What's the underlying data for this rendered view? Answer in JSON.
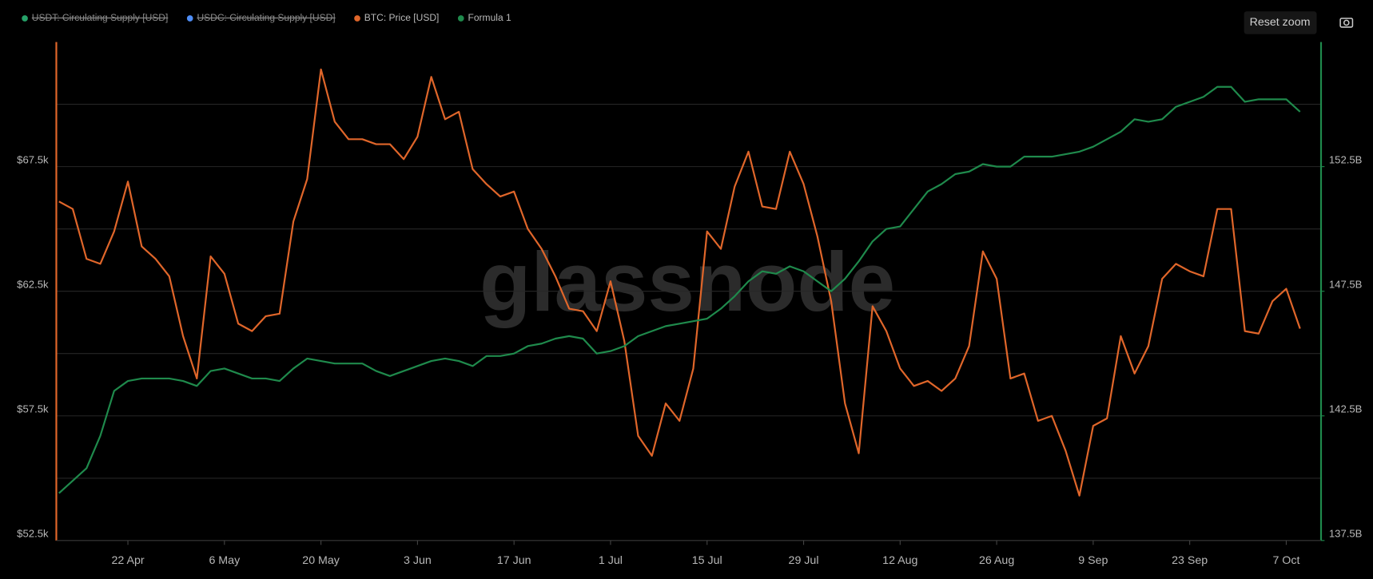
{
  "chart_data": {
    "type": "line",
    "watermark": "glassnode",
    "reset_zoom": "Reset zoom",
    "x": [
      "12 Apr",
      "14 Apr",
      "16 Apr",
      "18 Apr",
      "20 Apr",
      "22 Apr",
      "24 Apr",
      "26 Apr",
      "28 Apr",
      "30 Apr",
      "2 May",
      "4 May",
      "6 May",
      "8 May",
      "10 May",
      "12 May",
      "14 May",
      "16 May",
      "18 May",
      "20 May",
      "22 May",
      "24 May",
      "26 May",
      "28 May",
      "30 May",
      "1 Jun",
      "3 Jun",
      "5 Jun",
      "7 Jun",
      "9 Jun",
      "11 Jun",
      "13 Jun",
      "15 Jun",
      "17 Jun",
      "19 Jun",
      "21 Jun",
      "23 Jun",
      "25 Jun",
      "27 Jun",
      "29 Jun",
      "1 Jul",
      "3 Jul",
      "5 Jul",
      "7 Jul",
      "9 Jul",
      "11 Jul",
      "13 Jul",
      "15 Jul",
      "17 Jul",
      "19 Jul",
      "21 Jul",
      "23 Jul",
      "25 Jul",
      "27 Jul",
      "29 Jul",
      "31 Jul",
      "2 Aug",
      "4 Aug",
      "6 Aug",
      "8 Aug",
      "10 Aug",
      "12 Aug",
      "14 Aug",
      "16 Aug",
      "18 Aug",
      "20 Aug",
      "22 Aug",
      "24 Aug",
      "26 Aug",
      "28 Aug",
      "30 Aug",
      "1 Sep",
      "3 Sep",
      "5 Sep",
      "7 Sep",
      "9 Sep",
      "11 Sep",
      "13 Sep",
      "15 Sep",
      "17 Sep",
      "19 Sep",
      "21 Sep",
      "23 Sep",
      "25 Sep",
      "27 Sep",
      "29 Sep",
      "1 Oct",
      "3 Oct",
      "5 Oct",
      "7 Oct",
      "9 Oct"
    ],
    "xticks": [
      "22 Apr",
      "6 May",
      "20 May",
      "3 Jun",
      "17 Jun",
      "1 Jul",
      "15 Jul",
      "29 Jul",
      "12 Aug",
      "26 Aug",
      "9 Sep",
      "23 Sep",
      "7 Oct"
    ],
    "series": [
      {
        "name": "USDT: Circulating Supply [USD]",
        "color": "#26a269",
        "hidden": true
      },
      {
        "name": "USDC: Circulating Supply [USD]",
        "color": "#4f8ef7",
        "hidden": true
      },
      {
        "name": "BTC: Price [USD]",
        "color": "#e0662a",
        "axis": "y",
        "values": [
          66100,
          65800,
          63800,
          63600,
          64900,
          66900,
          64300,
          63800,
          63100,
          60700,
          59000,
          63900,
          63200,
          61200,
          60900,
          61500,
          61600,
          65300,
          67000,
          71400,
          69300,
          68600,
          68600,
          68400,
          68400,
          67800,
          68700,
          71100,
          69400,
          69700,
          67400,
          66800,
          66300,
          66500,
          65000,
          64200,
          63100,
          61800,
          61700,
          60900,
          62900,
          60500,
          56700,
          55900,
          58000,
          57300,
          59400,
          64900,
          64200,
          66700,
          68100,
          65900,
          65800,
          68100,
          66800,
          64700,
          62100,
          58000,
          56000,
          61900,
          60900,
          59400,
          58700,
          58900,
          58500,
          59000,
          60300,
          64100,
          63000,
          59000,
          59200,
          57300,
          57500,
          56100,
          54300,
          57100,
          57400,
          60700,
          59200,
          60300,
          63000,
          63600,
          63300,
          63100,
          65800,
          65800,
          60900,
          60800,
          62100,
          62600,
          61000
        ]
      },
      {
        "name": "Formula 1",
        "color": "#1f8a4c",
        "axis": "y2",
        "values": [
          139.4,
          139.9,
          140.4,
          141.7,
          143.5,
          143.9,
          144.0,
          144.0,
          144.0,
          143.9,
          143.7,
          144.3,
          144.4,
          144.2,
          144.0,
          144.0,
          143.9,
          144.4,
          144.8,
          144.7,
          144.6,
          144.6,
          144.6,
          144.3,
          144.1,
          144.3,
          144.5,
          144.7,
          144.8,
          144.7,
          144.5,
          144.9,
          144.9,
          145.0,
          145.3,
          145.4,
          145.6,
          145.7,
          145.6,
          145.0,
          145.1,
          145.3,
          145.7,
          145.9,
          146.1,
          146.2,
          146.3,
          146.4,
          146.8,
          147.3,
          147.9,
          148.3,
          148.2,
          148.5,
          148.3,
          147.9,
          147.5,
          148.0,
          148.7,
          149.5,
          150.0,
          150.1,
          150.8,
          151.5,
          151.8,
          152.2,
          152.3,
          152.6,
          152.5,
          152.5,
          152.9,
          152.9,
          152.9,
          153.0,
          153.1,
          153.3,
          153.6,
          153.9,
          154.4,
          154.3,
          154.4,
          154.9,
          155.1,
          155.3,
          155.7,
          155.7,
          155.1,
          155.2,
          155.2,
          155.2,
          154.7
        ]
      }
    ],
    "ylim": [
      52500,
      72500
    ],
    "yticks": [
      {
        "value": 52500,
        "label": "$52.5k"
      },
      {
        "value": 55000,
        "label": null
      },
      {
        "value": 57500,
        "label": "$57.5k"
      },
      {
        "value": 60000,
        "label": null
      },
      {
        "value": 62500,
        "label": "$62.5k"
      },
      {
        "value": 65000,
        "label": null
      },
      {
        "value": 67500,
        "label": "$67.5k"
      },
      {
        "value": 70000,
        "label": null
      }
    ],
    "y2lim": [
      137.5,
      157.5
    ],
    "y2ticks": [
      {
        "value": 137.5,
        "label": "137.5B"
      },
      {
        "value": 142.5,
        "label": "142.5B"
      },
      {
        "value": 147.5,
        "label": "147.5B"
      },
      {
        "value": 152.5,
        "label": "152.5B"
      }
    ],
    "grid": true,
    "legend": "top-left"
  }
}
